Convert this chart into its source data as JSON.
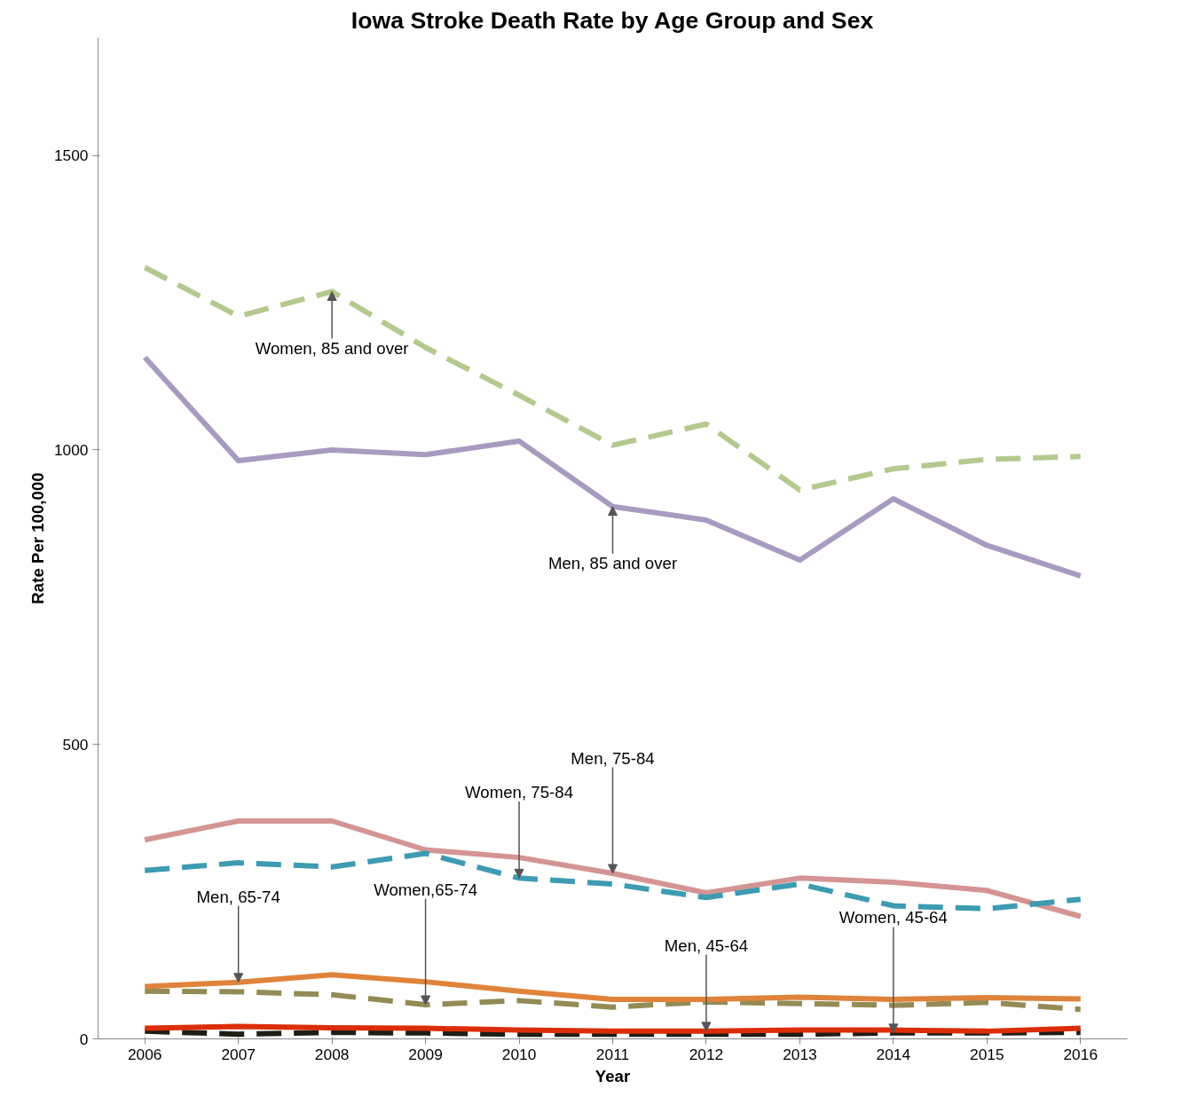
{
  "chart_data": {
    "type": "line",
    "title": "Iowa Stroke Death Rate by Age Group and Sex",
    "xlabel": "Year",
    "ylabel": "Rate Per 100,000",
    "x": [
      2006,
      2007,
      2008,
      2009,
      2010,
      2011,
      2012,
      2013,
      2014,
      2015,
      2016
    ],
    "xlim": [
      2005.5,
      2016.5
    ],
    "xticks": [
      2006,
      2007,
      2008,
      2009,
      2010,
      2011,
      2012,
      2013,
      2014,
      2015,
      2016
    ],
    "ylim": [
      0,
      1700
    ],
    "yticks": [
      0,
      500,
      1000,
      1500
    ],
    "grid": false,
    "marker": "none",
    "series": [
      {
        "color": "#b3c98f",
        "line_style": "dashed",
        "values": [
          1310,
          1227,
          1269,
          1174,
          1093,
          1008,
          1044,
          932,
          968,
          984,
          989
        ]
      },
      {
        "color": "#a89bc0",
        "line_style": "solid",
        "values": [
          1157,
          982,
          1000,
          992,
          1015,
          904,
          881,
          813,
          917,
          838,
          786
        ]
      },
      {
        "color": "#d49494",
        "line_style": "solid",
        "values": [
          338,
          370,
          370,
          321,
          308,
          281,
          248,
          273,
          266,
          252,
          208
        ]
      },
      {
        "color": "#3d9bb2",
        "line_style": "dashed",
        "values": [
          286,
          299,
          292,
          315,
          273,
          263,
          240,
          263,
          226,
          221,
          237
        ]
      },
      {
        "color": "#938b55",
        "line_style": "dashed",
        "values": [
          81,
          80,
          75,
          58,
          65,
          54,
          63,
          60,
          57,
          62,
          50
        ]
      },
      {
        "color": "#e0833a",
        "line_style": "solid",
        "values": [
          89,
          96,
          109,
          97,
          81,
          67,
          67,
          71,
          67,
          70,
          68
        ]
      },
      {
        "color": "#1e1e14",
        "line_style": "dashed",
        "values": [
          13,
          8,
          11,
          10,
          8,
          8,
          8,
          8,
          10,
          10,
          11
        ]
      },
      {
        "color": "#dc2d0a",
        "line_style": "solid",
        "values": [
          18,
          21,
          19,
          18,
          15,
          13,
          13,
          15,
          15,
          13,
          18
        ]
      }
    ],
    "annotations": [
      {
        "text": "Women, 85 and over",
        "x": 2008,
        "y": 1269
      },
      {
        "text": "Men, 85 and over",
        "x": 2011,
        "y": 904
      },
      {
        "text": "Men, 65-74",
        "x": 2007,
        "y": 96
      },
      {
        "text": "Women,65-74",
        "x": 2009,
        "y": 58
      },
      {
        "text": "Men, 45-64",
        "x": 2012,
        "y": 13
      },
      {
        "text": "Women, 45-64",
        "x": 2014,
        "y": 10
      },
      {
        "text": "Women, 75-84",
        "x": 2010,
        "y": 273
      },
      {
        "text": "Men, 75-84",
        "x": 2011,
        "y": 281
      }
    ]
  }
}
